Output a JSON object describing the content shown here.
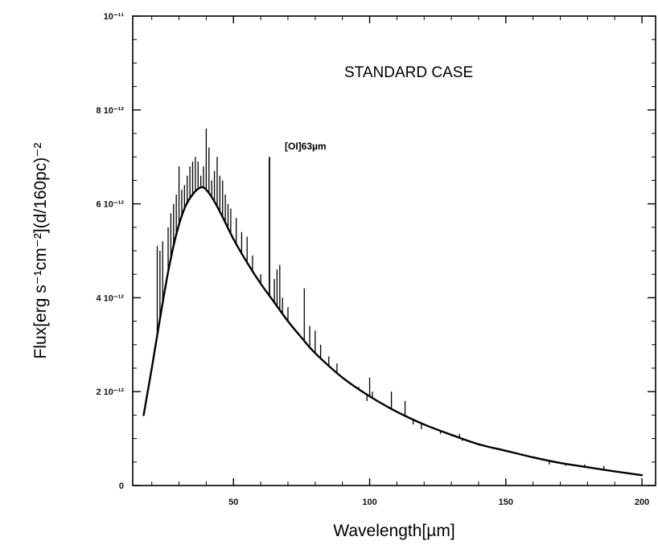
{
  "chart_data": {
    "type": "line",
    "title": "",
    "xlabel": "Wavelength[µm]",
    "ylabel": "Flux[erg s⁻¹cm⁻²](d/160pc)⁻²",
    "xlim": [
      13,
      205
    ],
    "ylim": [
      0,
      1e-11
    ],
    "grid": false,
    "annotations": [
      {
        "text": "STANDARD CASE"
      },
      {
        "text": "[OI]63µm"
      }
    ],
    "x_ticks": [
      {
        "value": 50,
        "label": "50"
      },
      {
        "value": 100,
        "label": "100"
      },
      {
        "value": 150,
        "label": "150"
      },
      {
        "value": 200,
        "label": "200"
      }
    ],
    "y_ticks": [
      {
        "value": 0,
        "label": "0"
      },
      {
        "value": 2e-12,
        "label": "2 10⁻¹²"
      },
      {
        "value": 4e-12,
        "label": "4 10⁻¹²"
      },
      {
        "value": 6e-12,
        "label": "6 10⁻¹²"
      },
      {
        "value": 8e-12,
        "label": "8 10⁻¹²"
      },
      {
        "value": 1e-11,
        "label": "10⁻¹¹"
      }
    ],
    "continuum": {
      "x": [
        17,
        20,
        23,
        26,
        29,
        32,
        35,
        38,
        40,
        43,
        46,
        50,
        55,
        60,
        65,
        70,
        75,
        80,
        90,
        100,
        110,
        120,
        130,
        140,
        150,
        160,
        170,
        180,
        190,
        200
      ],
      "y": [
        1.5e-12,
        2.5e-12,
        3.55e-12,
        4.55e-12,
        5.35e-12,
        5.9e-12,
        6.2e-12,
        6.35e-12,
        6.3e-12,
        6.05e-12,
        5.72e-12,
        5.25e-12,
        4.75e-12,
        4.3e-12,
        3.9e-12,
        3.5e-12,
        3.15e-12,
        2.82e-12,
        2.3e-12,
        1.9e-12,
        1.57e-12,
        1.3e-12,
        1.08e-12,
        8.8e-13,
        7.4e-13,
        6e-13,
        4.8e-13,
        3.9e-13,
        3e-13,
        2.2e-13
      ]
    },
    "lines": {
      "x": [
        22,
        23,
        24,
        26,
        27,
        28,
        29,
        30,
        31,
        32,
        33,
        34,
        35,
        36,
        37,
        38,
        39,
        40,
        41,
        42,
        43,
        44,
        45,
        46,
        47,
        48,
        49,
        51,
        53,
        55,
        57,
        60,
        63.2,
        65,
        66,
        67,
        68,
        70,
        73,
        76,
        78,
        80,
        82,
        85,
        88,
        90,
        93,
        96,
        99,
        100,
        101,
        103,
        105,
        108,
        113,
        116,
        119,
        122,
        126,
        130,
        133,
        134,
        136,
        140,
        145,
        152,
        157,
        162,
        166,
        172,
        174,
        175,
        179,
        181,
        186
      ],
      "y": [
        5.1e-12,
        5e-12,
        5.2e-12,
        5.5e-12,
        5.8e-12,
        6e-12,
        6.2e-12,
        6.8e-12,
        6.3e-12,
        6.4e-12,
        6.6e-12,
        6.8e-12,
        6.9e-12,
        7e-12,
        6.9e-12,
        6.6e-12,
        6.8e-12,
        7.6e-12,
        7.2e-12,
        6.5e-12,
        6.7e-12,
        7e-12,
        6.6e-12,
        6.5e-12,
        6.2e-12,
        6e-12,
        5.9e-12,
        5.7e-12,
        5.4e-12,
        5.3e-12,
        4.9e-12,
        4.5e-12,
        7e-12,
        4.4e-12,
        4.6e-12,
        4.7e-12,
        4e-12,
        3.8e-12,
        3.3e-12,
        4.2e-12,
        3.4e-12,
        3.3e-12,
        3e-12,
        2.75e-12,
        2.6e-12,
        2.3e-12,
        2.15e-12,
        2.1e-12,
        1.8e-12,
        2.3e-12,
        2e-12,
        1.8e-12,
        1.75e-12,
        2e-12,
        1.8e-12,
        1.3e-12,
        1.2e-12,
        1.25e-12,
        1.1e-12,
        1.05e-12,
        1.1e-12,
        9.5e-13,
        9.5e-13,
        8.5e-13,
        7.8e-13,
        7e-13,
        6.2e-13,
        5.8e-13,
        4.5e-13,
        4.2e-13,
        4.5e-13,
        4.2e-13,
        4.5e-13,
        3.6e-13,
        4.2e-13
      ]
    }
  }
}
